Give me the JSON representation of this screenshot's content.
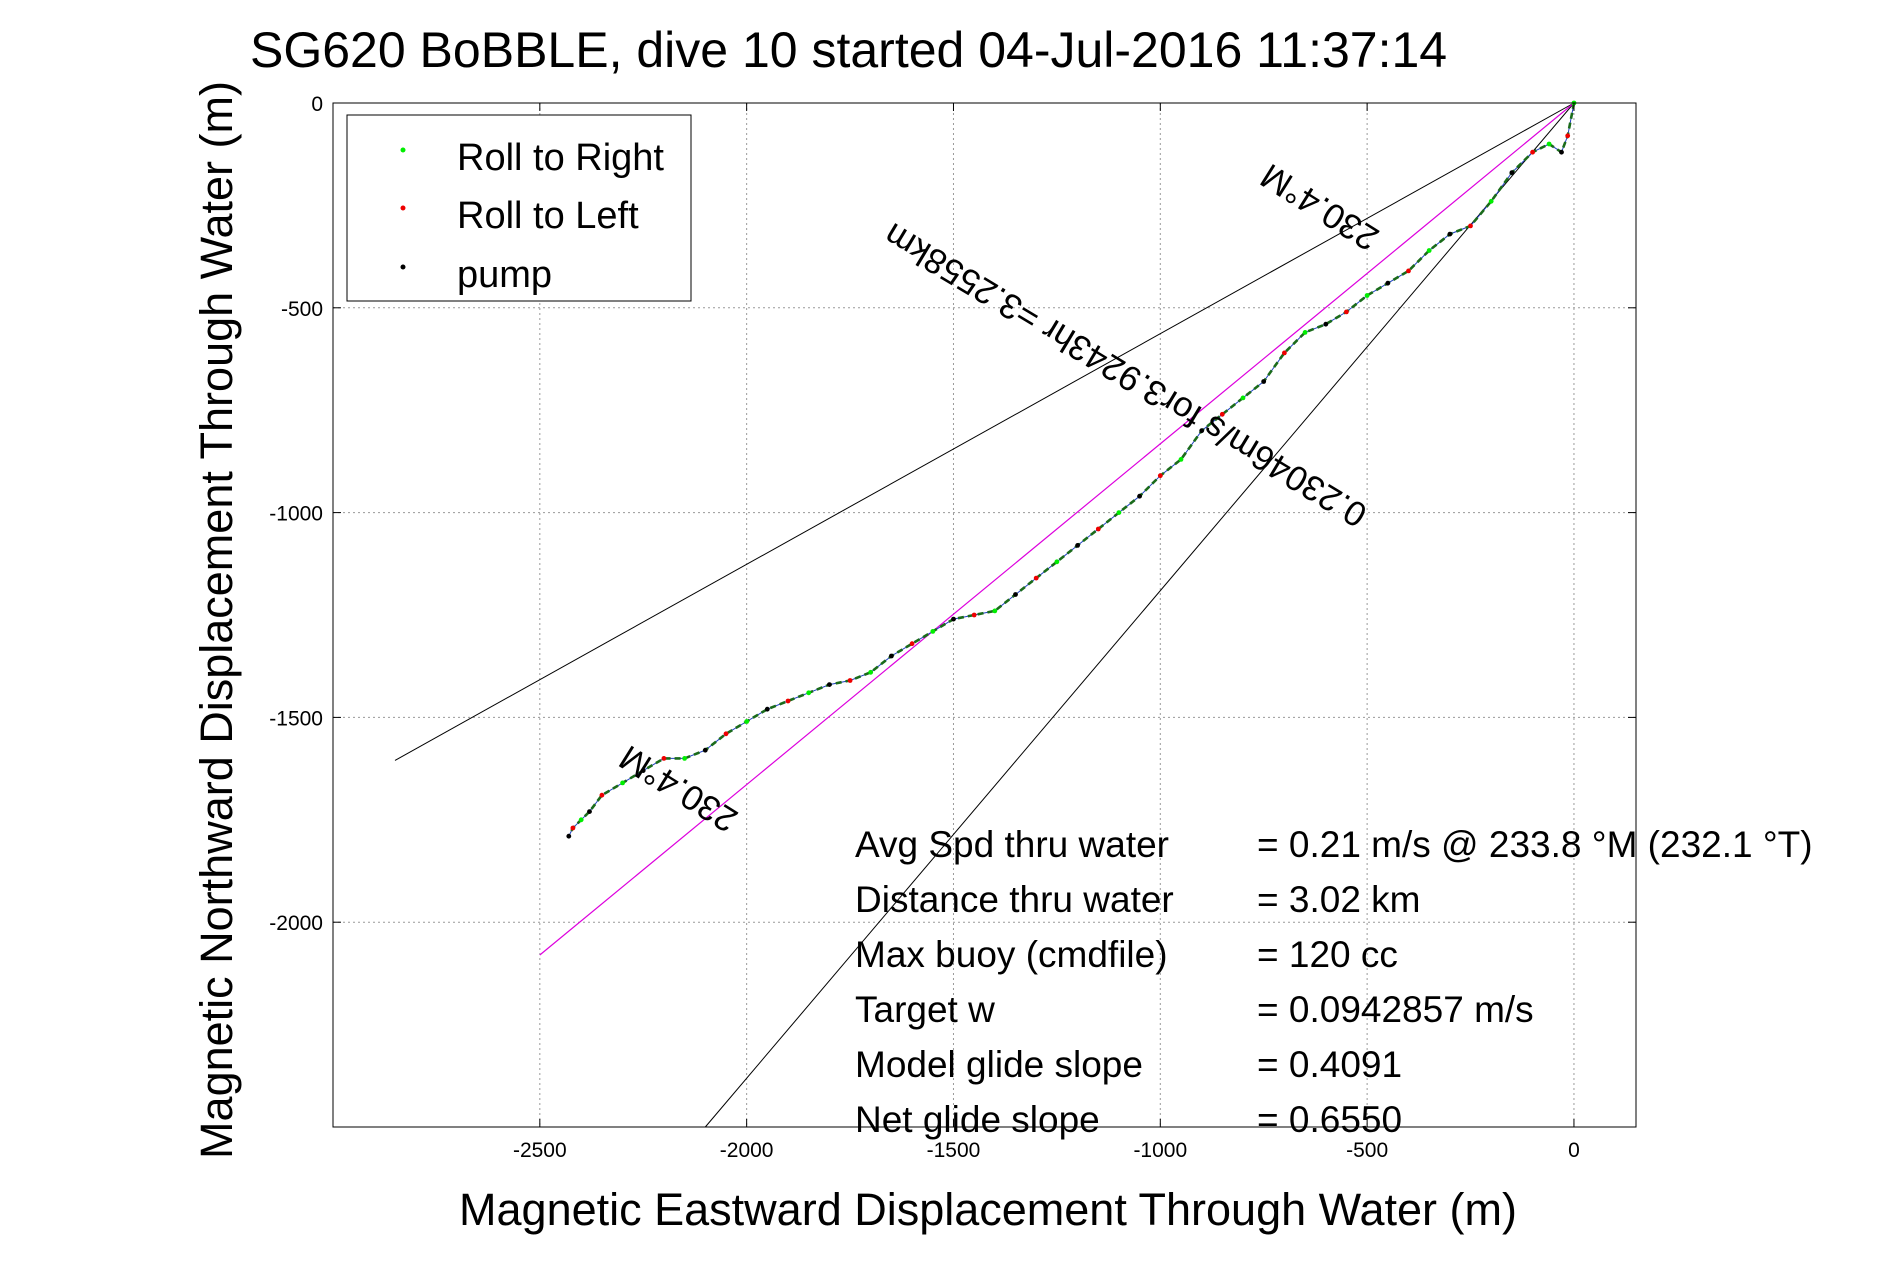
{
  "chart_data": {
    "type": "line",
    "title": "SG620 BoBBLE, dive 10 started 04-Jul-2016 11:37:14",
    "xlabel": "Magnetic Eastward Displacement Through Water (m)",
    "ylabel": "Magnetic Northward Displacement Through Water (m)",
    "xlim": [
      -3000,
      150
    ],
    "ylim": [
      -2500,
      0
    ],
    "xticks": [
      -2500,
      -2000,
      -1500,
      -1000,
      -500,
      0
    ],
    "yticks": [
      0,
      -500,
      -1000,
      -1500,
      -2000
    ],
    "grid": true,
    "legend_position": "top-left",
    "legend": [
      {
        "label": "Roll to Right",
        "color": "#00ee00"
      },
      {
        "label": "Roll to Left",
        "color": "#ee0000"
      },
      {
        "label": "pump",
        "color": "#000000"
      }
    ],
    "series": [
      {
        "style": "track",
        "color": "#1a6b1a",
        "x": [
          0,
          -15,
          -30,
          -60,
          -100,
          -150,
          -200,
          -250,
          -300,
          -350,
          -400,
          -450,
          -500,
          -550,
          -600,
          -650,
          -700,
          -750,
          -800,
          -850,
          -900,
          -950,
          -1000,
          -1050,
          -1100,
          -1150,
          -1200,
          -1250,
          -1300,
          -1350,
          -1400,
          -1450,
          -1500,
          -1550,
          -1600,
          -1650,
          -1700,
          -1750,
          -1800,
          -1850,
          -1900,
          -1950,
          -2000,
          -2050,
          -2100,
          -2150,
          -2200,
          -2250,
          -2300,
          -2350,
          -2380,
          -2400,
          -2420,
          -2430
        ],
        "y": [
          0,
          -80,
          -120,
          -100,
          -120,
          -170,
          -240,
          -300,
          -320,
          -360,
          -410,
          -440,
          -470,
          -510,
          -540,
          -560,
          -610,
          -680,
          -720,
          -760,
          -800,
          -870,
          -910,
          -960,
          -1000,
          -1040,
          -1080,
          -1120,
          -1160,
          -1200,
          -1240,
          -1250,
          -1260,
          -1290,
          -1320,
          -1350,
          -1390,
          -1410,
          -1420,
          -1440,
          -1460,
          -1480,
          -1510,
          -1540,
          -1580,
          -1600,
          -1600,
          -1630,
          -1660,
          -1690,
          -1730,
          -1750,
          -1770,
          -1790
        ]
      },
      {
        "style": "model",
        "color": "#dd00dd",
        "x": [
          0,
          -2500
        ],
        "y": [
          0,
          -2080
        ]
      },
      {
        "style": "envelope",
        "color": "#000000",
        "x": [
          0,
          -2850
        ],
        "y": [
          0,
          -1605
        ]
      },
      {
        "style": "envelope",
        "color": "#000000",
        "x": [
          0,
          -2100
        ],
        "y": [
          0,
          -2500
        ]
      }
    ],
    "annotations": [
      {
        "text": "230.4°M",
        "x": -600,
        "y": -230,
        "rotation": 212
      },
      {
        "text": "0.23046m/s for3.9243hr =3.2558km",
        "x": -1070,
        "y": -640,
        "rotation": 211
      },
      {
        "text": "230.4°M",
        "x": -2150,
        "y": -1650,
        "rotation": 212
      }
    ],
    "stats": [
      {
        "label": "Avg Spd thru water",
        "value": "=  0.21 m/s @ 233.8 °M (232.1 °T)"
      },
      {
        "label": "Distance thru water",
        "value": "=  3.02 km"
      },
      {
        "label": "Max buoy (cmdfile)",
        "value": "= 120 cc"
      },
      {
        "label": "Target w",
        "value": "= 0.0942857 m/s"
      },
      {
        "label": "Model glide slope",
        "value": "= 0.4091"
      },
      {
        "label": "Net glide slope",
        "value": "= 0.6550"
      }
    ]
  }
}
